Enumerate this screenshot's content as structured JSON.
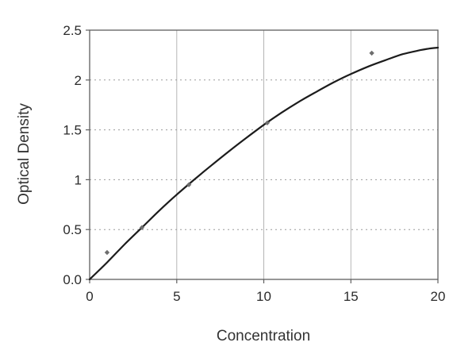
{
  "chart_data": {
    "type": "scatter",
    "title": "",
    "xlabel": "Concentration",
    "ylabel": "Optical Density",
    "xlim": [
      0,
      20
    ],
    "ylim": [
      0,
      2.5
    ],
    "x_ticks": [
      0,
      5,
      10,
      15,
      20
    ],
    "x_tick_labels": [
      "0",
      "5",
      "10",
      "15",
      "20"
    ],
    "y_ticks": [
      0,
      0.5,
      1,
      1.5,
      2,
      2.5
    ],
    "y_tick_labels": [
      "0.0",
      "0.5",
      "1",
      "1.5",
      "2",
      "2.5"
    ],
    "gridlines": {
      "x": [
        5,
        10,
        15
      ],
      "x_style": "solid",
      "y": [
        0.5,
        1,
        1.5,
        2
      ],
      "y_style": "dashed"
    },
    "legend": "none",
    "points": [
      [
        1.0,
        0.27
      ],
      [
        3.0,
        0.52
      ],
      [
        5.7,
        0.95
      ],
      [
        10.2,
        1.57
      ],
      [
        16.2,
        2.27
      ]
    ],
    "fit_curve": [
      [
        0,
        0.0
      ],
      [
        1,
        0.17
      ],
      [
        2,
        0.35
      ],
      [
        3,
        0.52
      ],
      [
        4,
        0.69
      ],
      [
        5,
        0.85
      ],
      [
        6,
        1.0
      ],
      [
        7,
        1.145
      ],
      [
        8,
        1.285
      ],
      [
        9,
        1.42
      ],
      [
        10,
        1.55
      ],
      [
        11,
        1.67
      ],
      [
        12,
        1.78
      ],
      [
        13,
        1.88
      ],
      [
        14,
        1.975
      ],
      [
        15,
        2.06
      ],
      [
        16,
        2.135
      ],
      [
        17,
        2.2
      ],
      [
        18,
        2.26
      ],
      [
        19,
        2.3
      ],
      [
        19.5,
        2.315
      ],
      [
        20,
        2.325
      ]
    ],
    "colors": {
      "curve": "#1c1c1c",
      "marker": "#6e6e6e",
      "grid_solid": "#b5b5b5",
      "grid_dashed": "#9a9a9a",
      "frame": "#5f5f5f",
      "text": "#2b2b2b",
      "background": "#ffffff"
    }
  }
}
